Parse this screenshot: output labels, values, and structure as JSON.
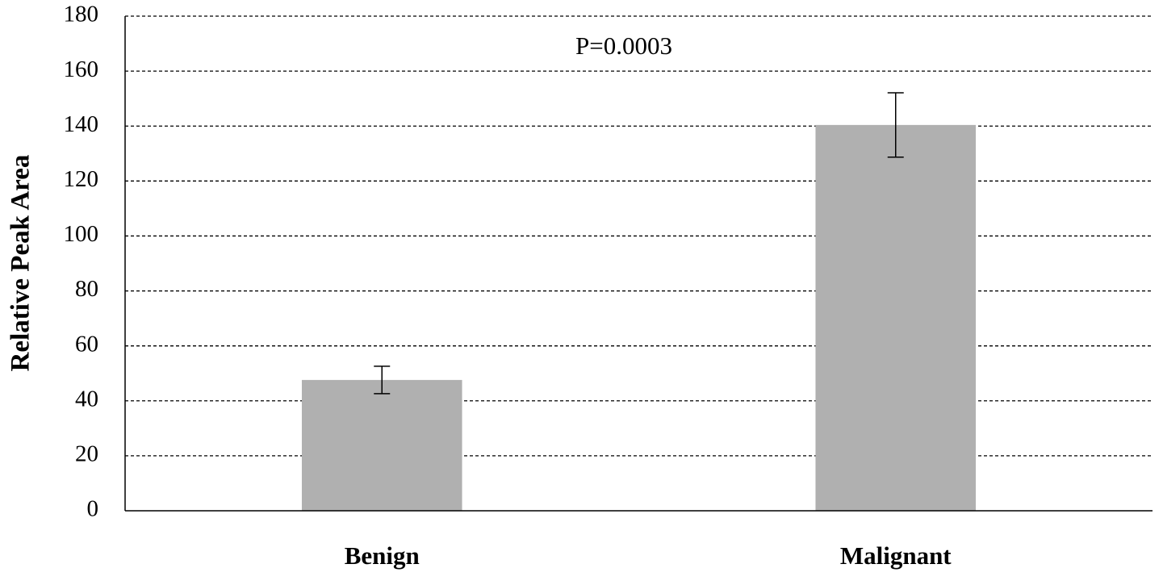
{
  "chart_data": {
    "type": "bar",
    "y_label": "Relative Peak Area",
    "annotation": "P=0.0003",
    "categories": [
      "Benign",
      "Malignant"
    ],
    "values": [
      47.6,
      140.4
    ],
    "errors": [
      5,
      11.7
    ],
    "color": "#b0b0b0",
    "ylim": [
      0,
      180
    ],
    "yticks": [
      0,
      20,
      40,
      60,
      80,
      100,
      120,
      140,
      160,
      180
    ],
    "grid": true
  }
}
